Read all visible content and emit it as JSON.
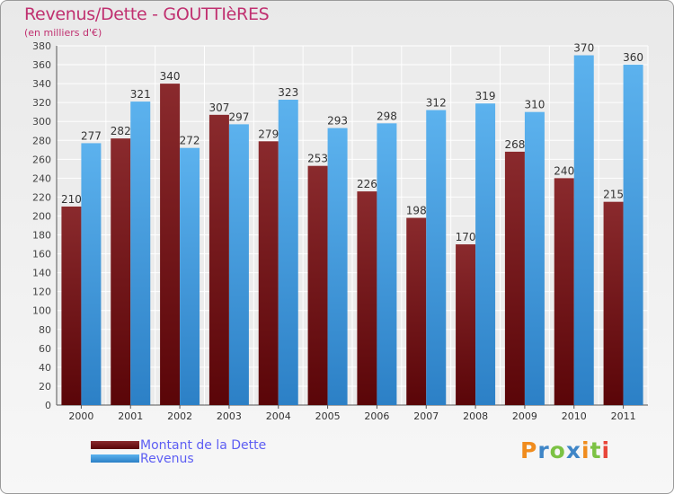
{
  "header": {
    "title": "Revenus/Dette - GOUTTIèRES",
    "subtitle": "(en milliers d'€)"
  },
  "legend": {
    "items": [
      {
        "label": "Montant de la Dette",
        "color": "#6e0f12"
      },
      {
        "label": "Revenus",
        "color": "#4aa3e6"
      }
    ]
  },
  "logo": {
    "letters": [
      "P",
      "r",
      "o",
      "x",
      "i",
      "t",
      "i"
    ],
    "colors": [
      "#f08c1e",
      "#3f86c7",
      "#7cc244",
      "#3f86c7",
      "#f08c1e",
      "#7cc244",
      "#e8463a"
    ]
  },
  "chart_data": {
    "type": "bar",
    "categories": [
      "2000",
      "2001",
      "2002",
      "2003",
      "2004",
      "2005",
      "2006",
      "2007",
      "2008",
      "2009",
      "2010",
      "2011"
    ],
    "series": [
      {
        "name": "Montant de la Dette",
        "color": "#6e0f12",
        "values": [
          210,
          282,
          340,
          307,
          279,
          253,
          226,
          198,
          170,
          268,
          240,
          215
        ]
      },
      {
        "name": "Revenus",
        "color": "#4aa3e6",
        "values": [
          277,
          321,
          272,
          297,
          323,
          293,
          298,
          312,
          319,
          310,
          370,
          360
        ]
      }
    ],
    "ylim": [
      0,
      380
    ],
    "ytick_step": 20,
    "grid": true,
    "legend_position": "bottom-left"
  }
}
